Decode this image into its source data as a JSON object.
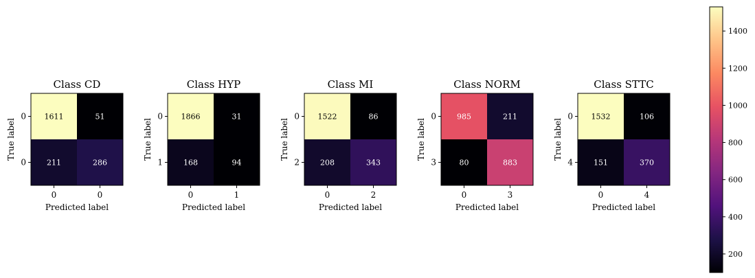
{
  "chart_data": [
    {
      "type": "heatmap",
      "title": "Class CD",
      "xlabel": "Predicted label",
      "ylabel": "True label",
      "x_tick_labels": [
        "0",
        "0"
      ],
      "y_tick_labels": [
        "0",
        "0"
      ],
      "matrix": [
        [
          1611,
          51
        ],
        [
          211,
          286
        ]
      ]
    },
    {
      "type": "heatmap",
      "title": "Class HYP",
      "xlabel": "Predicted label",
      "ylabel": "True label",
      "x_tick_labels": [
        "0",
        "1"
      ],
      "y_tick_labels": [
        "0",
        "1"
      ],
      "matrix": [
        [
          1866,
          31
        ],
        [
          168,
          94
        ]
      ]
    },
    {
      "type": "heatmap",
      "title": "Class MI",
      "xlabel": "Predicted label",
      "ylabel": "True label",
      "x_tick_labels": [
        "0",
        "2"
      ],
      "y_tick_labels": [
        "0",
        "2"
      ],
      "matrix": [
        [
          1522,
          86
        ],
        [
          208,
          343
        ]
      ]
    },
    {
      "type": "heatmap",
      "title": "Class NORM",
      "xlabel": "Predicted label",
      "ylabel": "True label",
      "x_tick_labels": [
        "0",
        "3"
      ],
      "y_tick_labels": [
        "0",
        "3"
      ],
      "matrix": [
        [
          985,
          211
        ],
        [
          80,
          883
        ]
      ]
    },
    {
      "type": "heatmap",
      "title": "Class STTC",
      "xlabel": "Predicted label",
      "ylabel": "True label",
      "x_tick_labels": [
        "0",
        "4"
      ],
      "y_tick_labels": [
        "0",
        "4"
      ],
      "matrix": [
        [
          1532,
          106
        ],
        [
          151,
          370
        ]
      ]
    }
  ],
  "colorbar": {
    "colormap": "magma",
    "range": [
      100,
      1530
    ],
    "ticks": [
      200,
      400,
      600,
      800,
      1000,
      1200,
      1400
    ]
  },
  "colormap_stops": [
    "#000004",
    "#1d1147",
    "#51127c",
    "#832681",
    "#b73779",
    "#e75263",
    "#fc8961",
    "#fec488",
    "#fcfdbf"
  ]
}
